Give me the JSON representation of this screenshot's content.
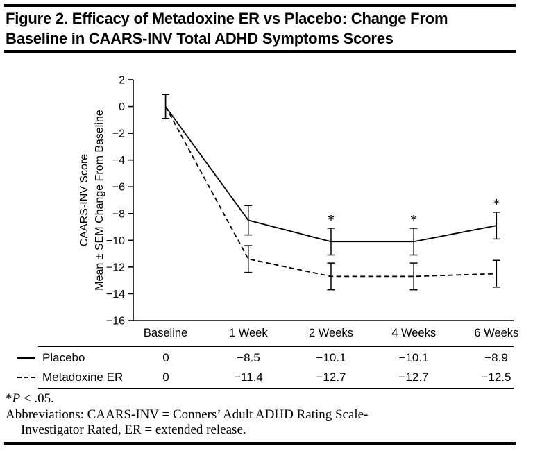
{
  "figure": {
    "title_line1": "Figure 2. Efficacy of Metadoxine ER vs Placebo: Change From",
    "title_line2": "Baseline in CAARS-INV Total ADHD Symptoms Scores"
  },
  "chart_data": {
    "type": "line",
    "title": "Figure 2. Efficacy of Metadoxine ER vs Placebo: Change From Baseline in CAARS-INV Total ADHD Symptoms Scores",
    "categories": [
      "Baseline",
      "1 Week",
      "2 Weeks",
      "4 Weeks",
      "6 Weeks"
    ],
    "series": [
      {
        "name": "Placebo",
        "style": "solid",
        "values": [
          0,
          -8.5,
          -10.1,
          -10.1,
          -8.9
        ],
        "sem": [
          0.9,
          1.1,
          1.0,
          1.0,
          1.0
        ]
      },
      {
        "name": "Metadoxine ER",
        "style": "dashed",
        "values": [
          0,
          -11.4,
          -12.7,
          -12.7,
          -12.5
        ],
        "sem": [
          0.9,
          1.0,
          1.0,
          1.0,
          1.0
        ]
      }
    ],
    "ylabel_line1": "CAARS-INV Score",
    "ylabel_line2": "Mean ± SEM Change From Baseline",
    "xlabel": "",
    "ylim": [
      -16,
      2
    ],
    "ytick_step": 2,
    "ytick_labels": [
      "2",
      "0",
      "−2",
      "−4",
      "−6",
      "−8",
      "−10",
      "−12",
      "−14",
      "−16"
    ],
    "grid": false,
    "legend_position": "table-below",
    "significance": {
      "symbol": "*",
      "series": "Placebo",
      "indices": [
        2,
        3,
        4
      ]
    }
  },
  "table": {
    "rows": [
      {
        "label": "Placebo",
        "swatch": "solid",
        "values": [
          "0",
          "−8.5",
          "−10.1",
          "−10.1",
          "−8.9"
        ]
      },
      {
        "label": "Metadoxine ER",
        "swatch": "dashed",
        "values": [
          "0",
          "−11.4",
          "−12.7",
          "−12.7",
          "−12.5"
        ]
      }
    ]
  },
  "footnotes": {
    "sig_star": "*",
    "sig_p": "P",
    "sig_rest": " < .05.",
    "abbrev_line1": "Abbreviations: CAARS-INV = Conners’ Adult ADHD Rating Scale-",
    "abbrev_line2": "Investigator Rated, ER = extended release."
  }
}
